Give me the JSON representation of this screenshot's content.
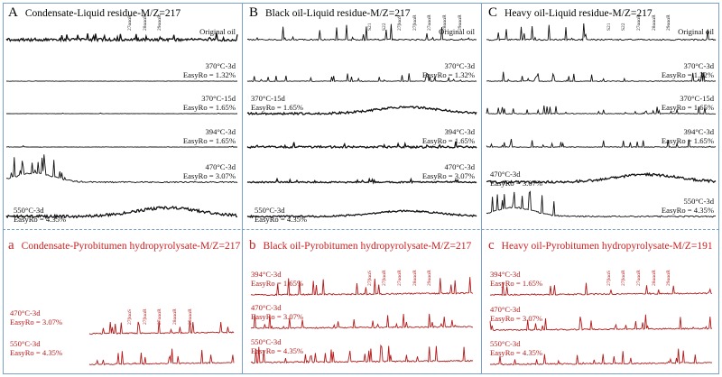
{
  "colors": {
    "trace_black": "#111111",
    "trace_red": "#b31b1b",
    "title_red": "#cc2222",
    "divider": "#7aa0c8",
    "hopane_line": "#7a9ad6"
  },
  "chart_data": [
    {
      "type": "line",
      "panel": "A",
      "title": "Condensate-Liquid residue-M/Z=217",
      "series": [
        {
          "label": "Original oil",
          "profile": "noisy",
          "amp": 0.8
        },
        {
          "label": "370°C-3d\nEasyRo = 1.32%",
          "profile": "flat",
          "amp": 0.3
        },
        {
          "label": "370°C-15d\nEasyRo = 1.65%",
          "profile": "flat",
          "amp": 0.25
        },
        {
          "label": "394°C-3d\nEasyRo = 1.65%",
          "profile": "flat",
          "amp": 0.25
        },
        {
          "label": "470°C-3d\nEasyRo = 3.07%",
          "profile": "early",
          "amp": 1.0
        },
        {
          "label": "550°C-3d\nEasyRo = 4.35%",
          "profile": "hump",
          "amp": 0.8
        }
      ],
      "peaks": [
        "27αααR",
        "28αααR",
        "29αααR"
      ]
    },
    {
      "type": "line",
      "panel": "B",
      "title": "Black oil-Liquid residue-M/Z=217",
      "series": [
        {
          "label": "Original oil",
          "profile": "peaks",
          "amp": 1.0
        },
        {
          "label": "370°C-3d\nEasyRo = 1.32%",
          "profile": "peaks",
          "amp": 0.5
        },
        {
          "label": "370°C-15d\nEasyRo = 1.65%",
          "profile": "hump",
          "amp": 0.6
        },
        {
          "label": "394°C-3d\nEasyRo = 1.65%",
          "profile": "noisy",
          "amp": 0.6
        },
        {
          "label": "470°C-3d\nEasyRo = 3.07%",
          "profile": "noisy",
          "amp": 0.4
        },
        {
          "label": "550°C-3d\nEasyRo = 4.35%",
          "profile": "hump",
          "amp": 0.5
        }
      ],
      "peaks": [
        "S21",
        "S22",
        "27βααS",
        "27βααR",
        "27αααR",
        "28αααR",
        "29αααR"
      ]
    },
    {
      "type": "line",
      "panel": "C",
      "title": "Heavy oil-Liquid residue-M/Z=217",
      "series": [
        {
          "label": "Original oil",
          "profile": "peaks",
          "amp": 1.0
        },
        {
          "label": "370°C-3d\nEasyRo = 1.32%",
          "profile": "peaks",
          "amp": 0.6
        },
        {
          "label": "370°C-15d\nEasyRo = 1.65%",
          "profile": "peaks",
          "amp": 0.5
        },
        {
          "label": "394°C-3d\nEasyRo = 1.65%",
          "profile": "peaks",
          "amp": 0.5
        },
        {
          "label": "470°C-3d\nEasyRo = 3.07%",
          "profile": "hump",
          "amp": 0.7
        },
        {
          "label": "550°C-3d\nEasyRo = 4.35%",
          "profile": "early",
          "amp": 1.0
        }
      ],
      "peaks": [
        "S21",
        "S22",
        "27αααR",
        "28αααR",
        "29αααR"
      ]
    },
    {
      "type": "line",
      "panel": "a",
      "title": "Condensate-Pyrobitumen hydropyrolysate-M/Z=217",
      "series": [
        {
          "label": "470°C-3d\nEasyRo = 3.07%",
          "profile": "peaks",
          "amp": 0.8
        },
        {
          "label": "550°C-3d\nEasyRo = 4.35%",
          "profile": "peaks",
          "amp": 0.9
        }
      ],
      "peaks": [
        "27βααS",
        "27βααR",
        "27αααR",
        "28αααR",
        "29αααR"
      ]
    },
    {
      "type": "line",
      "panel": "b",
      "title": "Black oil-Pyrobitumen hydropyrolysate-M/Z=217",
      "series": [
        {
          "label": "394°C-3d\nEasyRo = 1.65%",
          "profile": "peaks",
          "amp": 1.0
        },
        {
          "label": "470°C-3d\nEasyRo = 3.07%",
          "profile": "peaks",
          "amp": 0.9
        },
        {
          "label": "550°C-3d\nEasyRo = 4.35%",
          "profile": "peaks",
          "amp": 1.0
        }
      ],
      "peaks": [
        "27βααS",
        "27βααR",
        "27αααR",
        "28αααR",
        "29αααR"
      ]
    },
    {
      "type": "line",
      "panel": "c",
      "title": "Heavy oil-Pyrobitumen hydropyrolysate-M/Z=191",
      "series": [
        {
          "label": "394°C-3d\nEasyRo = 1.65%",
          "profile": "peaks",
          "amp": 0.9
        },
        {
          "label": "470°C-3d\nEasyRo = 3.07%",
          "profile": "peaks",
          "amp": 0.9
        },
        {
          "label": "550°C-3d\nEasyRo = 4.35%",
          "profile": "peaks",
          "amp": 0.9
        }
      ],
      "peaks": [
        "27βααS",
        "27βααR",
        "27αααR",
        "28αααR",
        "29αααR"
      ]
    }
  ]
}
